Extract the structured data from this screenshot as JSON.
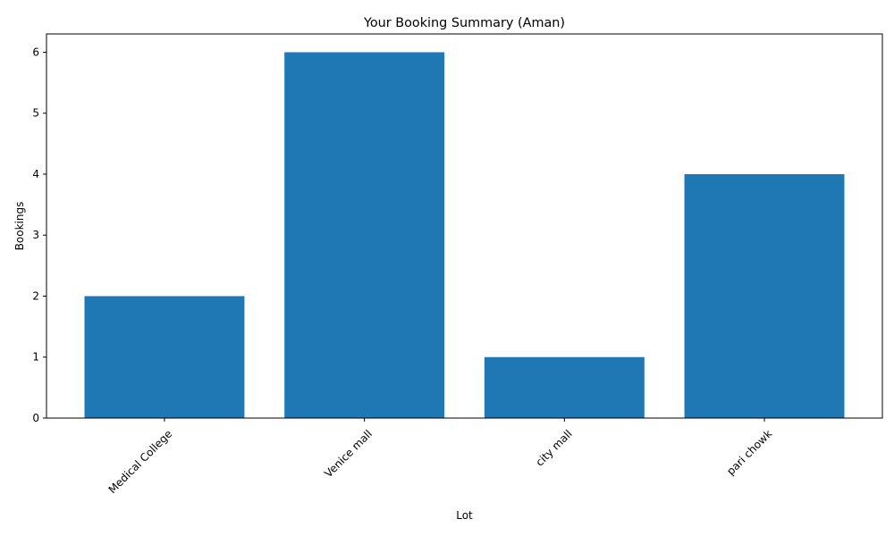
{
  "chart_data": {
    "type": "bar",
    "title": "Your Booking Summary (Aman)",
    "xlabel": "Lot",
    "ylabel": "Bookings",
    "categories": [
      "Medical College",
      "Venice mall",
      "city mall",
      "pari chowk"
    ],
    "values": [
      2,
      6,
      1,
      4
    ],
    "ylim": [
      0,
      6.3
    ],
    "yticks": [
      0,
      1,
      2,
      3,
      4,
      5,
      6
    ],
    "bar_color": "#1f77b4",
    "grid": false,
    "legend": "none",
    "xtick_rotation_deg": 45
  }
}
